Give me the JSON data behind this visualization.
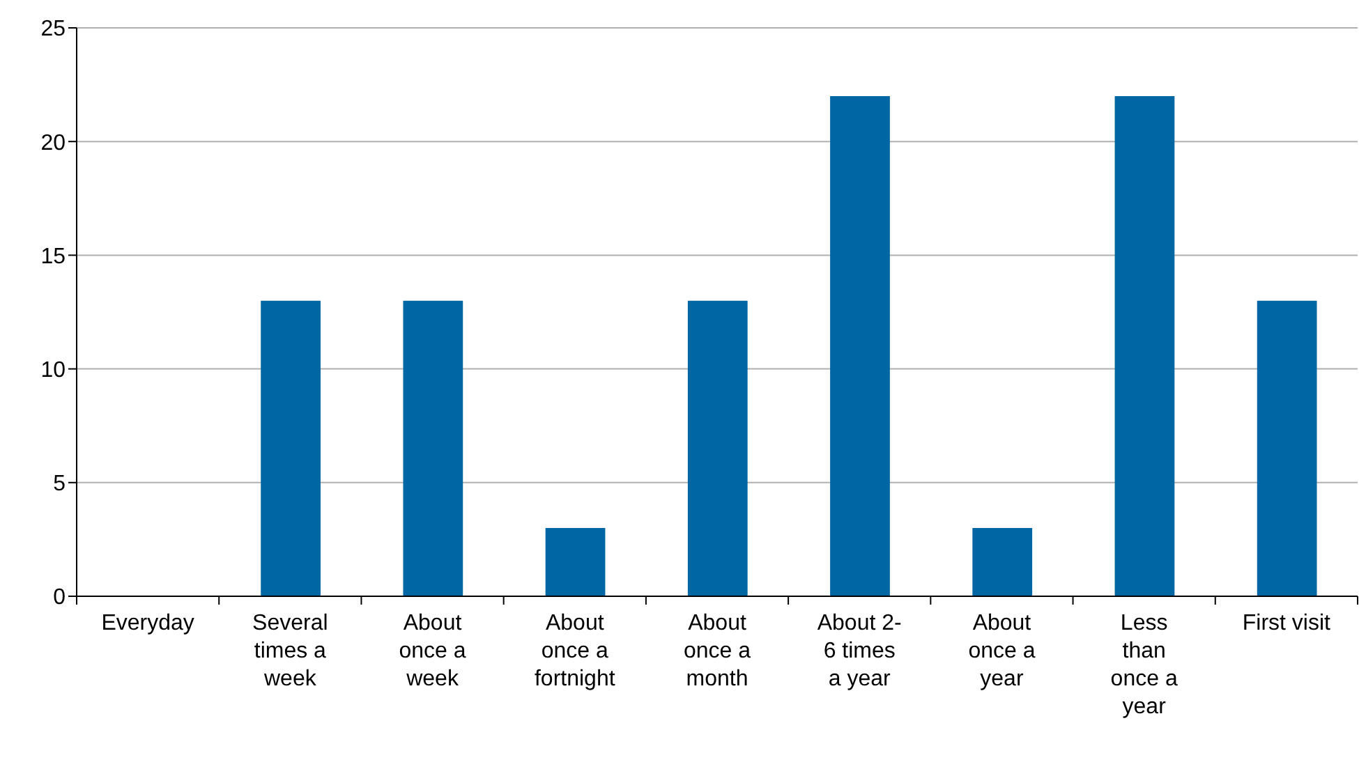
{
  "chart_data": {
    "type": "bar",
    "categories": [
      "Everyday",
      "Several times a week",
      "About once a week",
      "About once a fortnight",
      "About once a month",
      "About 2-6 times a year",
      "About once a year",
      "Less than once a year",
      "First visit"
    ],
    "values": [
      0,
      13,
      13,
      3,
      13,
      22,
      3,
      22,
      13
    ],
    "color": "#0066a4",
    "ylim": [
      0,
      25
    ],
    "yticks": [
      0,
      5,
      10,
      15,
      20,
      25
    ],
    "grid": "y"
  }
}
